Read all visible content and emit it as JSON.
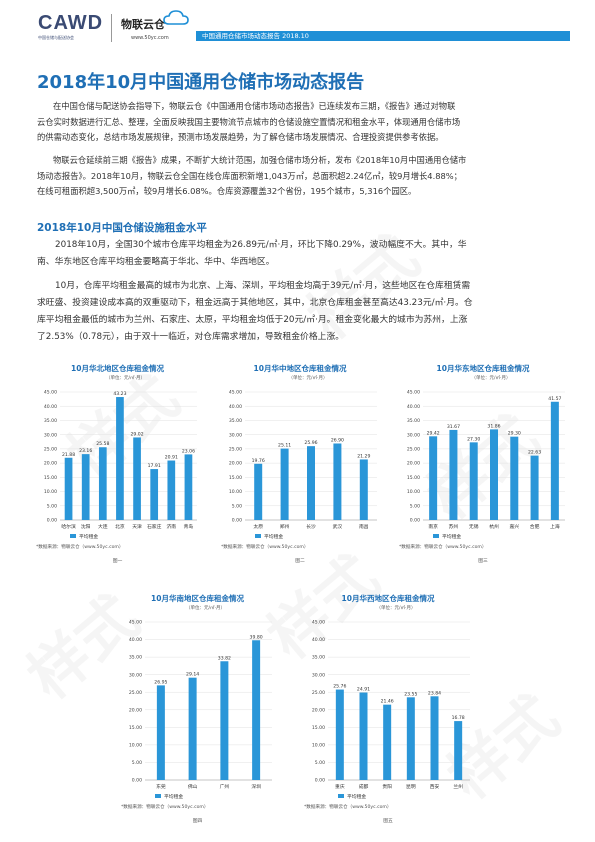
{
  "header": {
    "logo_cawd": "CAWD",
    "logo_cawd_sub": "中国仓储与配送协会",
    "logo_wly": "物联云仓",
    "logo_wly_url": "www.50yc.com",
    "bar_text": "中国通用仓储市场动态报告 2018.10"
  },
  "title": "2018年10月中国通用仓储市场动态报告",
  "intro": {
    "p1": [
      "在中国仓储与配送协会指导下，物联云仓《中国通用仓储市场动态报告》已连续发布三期，《报告》通过对物联",
      "云仓实时数据进行汇总、整理，全面反映我国主要物流节点城市的仓储设施空置情况和租金水平，体现通用仓储市场",
      "的供需动态变化，总结市场发展规律，预测市场发展趋势，为了解仓储市场发展情况、合理投资提供参考依据。"
    ],
    "p2": [
      "物联云仓延续前三期《报告》成果，不断扩大统计范围，加强仓储市场分析，发布《2018年10月中国通用仓储市",
      "场动态报告》。2018年10月，物联云仓全国在线仓库面积新增1,043万㎡，总面积超2.24亿㎡，较9月增长4.88%；",
      "在线可租面积超3,500万㎡，较9月增长6.08%。仓库资源覆盖32个省份，195个城市，5,316个园区。"
    ]
  },
  "section_title": "2018年10月中国仓储设施租金水平",
  "body": {
    "p3": [
      "2018年10月，全国30个城市仓库平均租金为26.89元/㎡·月，环比下降0.29%，波动幅度不大。其中，华",
      "南、华东地区仓库平均租金要略高于华北、华中、华西地区。"
    ],
    "p4": [
      "10月，仓库平均租金最高的城市为北京、上海、深圳，平均租金均高于39元/㎡·月，这些地区在仓库租赁需",
      "求旺盛、投资建设成本高的双重驱动下，租金远高于其他地区，其中，北京仓库租金甚至高达43.23元/㎡·月。仓",
      "库平均租金最低的城市为兰州、石家庄、太原，平均租金均低于20元/㎡·月。租金变化最大的城市为苏州，上涨",
      "了2.53%（0.78元），由于双十一临近，对仓库需求增加，导致租金价格上涨。"
    ]
  },
  "watermarks": [
    "样式",
    "样式",
    "样式",
    "样式",
    "样式",
    "样式"
  ],
  "colors": {
    "bar": "#2a96d8",
    "title": "#1f6fb5",
    "header_bar": "#1f8fd6"
  },
  "chart_data": [
    {
      "type": "bar",
      "title": "10月华北地区仓库租金情况",
      "subtitle": "（单位：元/㎡·月）",
      "categories": [
        "哈尔滨",
        "沈阳",
        "大连",
        "北京",
        "天津",
        "石家庄",
        "济南",
        "青岛"
      ],
      "series": [
        {
          "name": "平均租金",
          "values": [
            21.88,
            23.16,
            25.58,
            43.23,
            29.02,
            17.91,
            20.91,
            23.06
          ]
        }
      ],
      "value_labels": [
        "21.88",
        "23.16",
        "25.58",
        "43.23",
        "29.02",
        "17.91",
        "20.91",
        "23.06"
      ],
      "yticks": [
        "0.00",
        "5.00",
        "10.00",
        "15.00",
        "20.00",
        "25.00",
        "30.00",
        "35.00",
        "40.00",
        "45.00"
      ],
      "ylim": [
        0,
        45
      ],
      "source": "*数据来源：物联云仓（www.50yc.com）",
      "caption": "图一"
    },
    {
      "type": "bar",
      "title": "10月华中地区仓库租金情况",
      "subtitle": "（单位：元/㎡·月）",
      "categories": [
        "太原",
        "郑州",
        "长沙",
        "武汉",
        "南昌"
      ],
      "series": [
        {
          "name": "平均租金",
          "values": [
            19.76,
            25.11,
            25.96,
            26.9,
            21.29
          ]
        }
      ],
      "value_labels": [
        "19.76",
        "25.11",
        "25.96",
        "26.90",
        "21.29"
      ],
      "yticks": [
        "0.00",
        "5.00",
        "10.00",
        "15.00",
        "20.00",
        "25.00",
        "30.00",
        "35.00",
        "40.00",
        "45.00"
      ],
      "ylim": [
        0,
        45
      ],
      "source": "*数据来源：物联云仓（www.50yc.com）",
      "caption": "图二"
    },
    {
      "type": "bar",
      "title": "10月华东地区仓库租金情况",
      "subtitle": "（单位：元/㎡·月）",
      "categories": [
        "南京",
        "苏州",
        "无锡",
        "杭州",
        "嘉兴",
        "合肥",
        "上海"
      ],
      "series": [
        {
          "name": "平均租金",
          "values": [
            29.42,
            31.67,
            27.3,
            31.86,
            29.3,
            22.63,
            41.57
          ]
        }
      ],
      "value_labels": [
        "29.42",
        "31.67",
        "27.30",
        "31.86",
        "29.30",
        "22.63",
        "41.57"
      ],
      "yticks": [
        "0.00",
        "5.00",
        "10.00",
        "15.00",
        "20.00",
        "25.00",
        "30.00",
        "35.00",
        "40.00",
        "45.00"
      ],
      "ylim": [
        0,
        45
      ],
      "source": "*数据来源：物联云仓（www.50yc.com）",
      "caption": "图三"
    },
    {
      "type": "bar",
      "title": "10月华南地区仓库租金情况",
      "subtitle": "（单位：元/㎡·月）",
      "categories": [
        "东莞",
        "佛山",
        "广州",
        "深圳"
      ],
      "series": [
        {
          "name": "平均租金",
          "values": [
            26.95,
            29.14,
            33.82,
            39.8
          ]
        }
      ],
      "value_labels": [
        "26.95",
        "29.14",
        "33.82",
        "39.80"
      ],
      "yticks": [
        "0.00",
        "5.00",
        "10.00",
        "15.00",
        "20.00",
        "25.00",
        "30.00",
        "35.00",
        "40.00",
        "45.00"
      ],
      "ylim": [
        0,
        45
      ],
      "source": "*数据来源：物联云仓（www.50yc.com）",
      "caption": "图四"
    },
    {
      "type": "bar",
      "title": "10月华西地区仓库租金情况",
      "subtitle": "（单位：元/㎡·月）",
      "categories": [
        "重庆",
        "成都",
        "贵阳",
        "昆明",
        "西安",
        "兰州"
      ],
      "series": [
        {
          "name": "平均租金",
          "values": [
            25.76,
            24.91,
            21.46,
            23.55,
            23.84,
            16.78
          ]
        }
      ],
      "value_labels": [
        "25.76",
        "24.91",
        "21.46",
        "23.55",
        "23.84",
        "16.78"
      ],
      "yticks": [
        "0.00",
        "5.00",
        "10.00",
        "15.00",
        "20.00",
        "25.00",
        "30.00",
        "35.00",
        "40.00",
        "45.00"
      ],
      "ylim": [
        0,
        45
      ],
      "source": "*数据来源：物联云仓（www.50yc.com）",
      "caption": "图五"
    }
  ]
}
